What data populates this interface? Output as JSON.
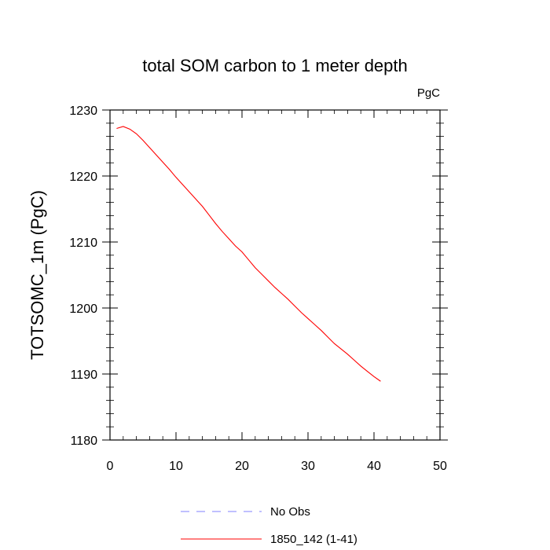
{
  "chart_data": {
    "type": "line",
    "title": "total SOM carbon to 1 meter depth",
    "units_label": "PgC",
    "xlabel": "",
    "ylabel": "TOTSOMC_1m  (PgC)",
    "xlim": [
      0,
      50
    ],
    "ylim": [
      1180,
      1230
    ],
    "x_ticks": [
      0,
      10,
      20,
      30,
      40,
      50
    ],
    "y_ticks": [
      1180,
      1190,
      1200,
      1210,
      1220,
      1230
    ],
    "x_tick_labels": [
      "0",
      "10",
      "20",
      "30",
      "40",
      "50"
    ],
    "y_tick_labels": [
      "1180",
      "1190",
      "1200",
      "1210",
      "1220",
      "1230"
    ],
    "grid": false,
    "legend_position": "bottom",
    "series": [
      {
        "name": "No Obs",
        "color": "#8080ff",
        "dash": "dashed",
        "x": [],
        "values": []
      },
      {
        "name": "1850_142 (1-41)",
        "color": "#ff0000",
        "dash": "solid",
        "x": [
          1,
          2,
          3,
          4,
          5,
          6,
          7,
          8,
          9,
          10,
          11,
          12,
          13,
          14,
          15,
          16,
          17,
          18,
          19,
          20,
          21,
          22,
          23,
          24,
          25,
          26,
          27,
          28,
          29,
          30,
          31,
          32,
          33,
          34,
          35,
          36,
          37,
          38,
          39,
          40,
          41
        ],
        "values": [
          1227.2,
          1227.5,
          1227.1,
          1226.4,
          1225.4,
          1224.3,
          1223.2,
          1222.1,
          1221.0,
          1219.8,
          1218.7,
          1217.6,
          1216.5,
          1215.4,
          1214.1,
          1212.8,
          1211.6,
          1210.5,
          1209.4,
          1208.5,
          1207.3,
          1206.1,
          1205.1,
          1204.1,
          1203.1,
          1202.2,
          1201.3,
          1200.3,
          1199.3,
          1198.4,
          1197.5,
          1196.6,
          1195.6,
          1194.6,
          1193.8,
          1193.0,
          1192.1,
          1191.2,
          1190.4,
          1189.6,
          1188.9
        ]
      }
    ]
  }
}
